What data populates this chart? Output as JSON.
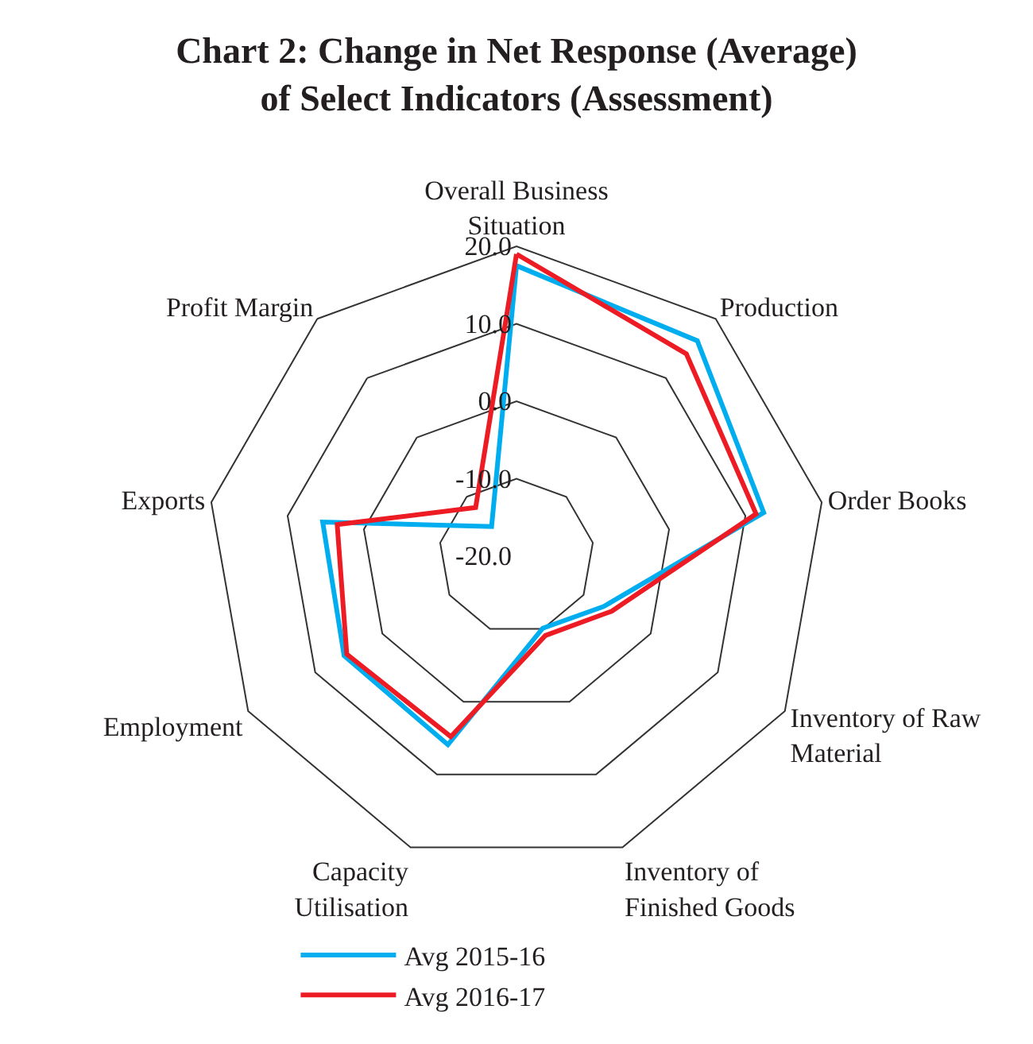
{
  "chart_data": {
    "type": "radar",
    "title": "Chart 2: Change in Net Response (Average) of Select Indicators (Assessment)",
    "categories": [
      "Overall Business Situation",
      "Production",
      "Order Books",
      "Inventory of Raw Material",
      "Inventory of Finished Goods",
      "Capacity Utilisation",
      "Employment",
      "Exports",
      "Profit Margin"
    ],
    "series": [
      {
        "name": "Avg 2015-16",
        "color": "#00aeef",
        "values": [
          17.5,
          16.3,
          12.4,
          -7.0,
          -10.1,
          5.9,
          5.7,
          5.4,
          -15.0
        ]
      },
      {
        "name": "Avg 2016-17",
        "color": "#ed1c24",
        "values": [
          19.0,
          14.1,
          11.4,
          -5.8,
          -9.1,
          4.8,
          5.3,
          3.5,
          -11.8
        ]
      }
    ],
    "ylim": [
      -20,
      20
    ],
    "yticks": [
      {
        "value": -20,
        "label": "-20.0"
      },
      {
        "value": -10,
        "label": "-10.0"
      },
      {
        "value": 0,
        "label": "0.0"
      },
      {
        "value": 10,
        "label": "10.0"
      },
      {
        "value": 20,
        "label": "20.0"
      }
    ],
    "grid": true,
    "legend": "bottom",
    "marker": "none",
    "line_style": "solid"
  }
}
